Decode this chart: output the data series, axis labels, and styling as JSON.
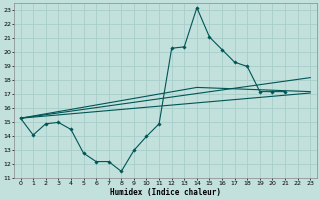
{
  "xlabel": "Humidex (Indice chaleur)",
  "bg_color": "#c2e0dc",
  "grid_color": "#a8ceca",
  "line_color": "#005555",
  "xlim": [
    -0.5,
    23.5
  ],
  "ylim": [
    11,
    23.5
  ],
  "xticks": [
    0,
    1,
    2,
    3,
    4,
    5,
    6,
    7,
    8,
    9,
    10,
    11,
    12,
    13,
    14,
    15,
    16,
    17,
    18,
    19,
    20,
    21,
    22,
    23
  ],
  "yticks": [
    11,
    12,
    13,
    14,
    15,
    16,
    17,
    18,
    19,
    20,
    21,
    22,
    23
  ],
  "curve_x": [
    0,
    1,
    2,
    3,
    4,
    5,
    6,
    7,
    8,
    9,
    10,
    11,
    12,
    13,
    14,
    15,
    16,
    17,
    18,
    19,
    20,
    21
  ],
  "curve_y": [
    15.3,
    14.1,
    14.9,
    15.0,
    14.5,
    12.8,
    12.2,
    12.2,
    11.5,
    13.0,
    14.0,
    14.9,
    20.3,
    20.4,
    23.2,
    21.1,
    20.2,
    19.3,
    19.0,
    17.2,
    17.2,
    17.2
  ],
  "trend1_x": [
    0,
    23
  ],
  "trend1_y": [
    15.3,
    17.1
  ],
  "trend2_x": [
    0,
    23
  ],
  "trend2_y": [
    15.3,
    18.2
  ],
  "trend3_x": [
    0,
    14,
    23
  ],
  "trend3_y": [
    15.3,
    17.5,
    17.2
  ]
}
